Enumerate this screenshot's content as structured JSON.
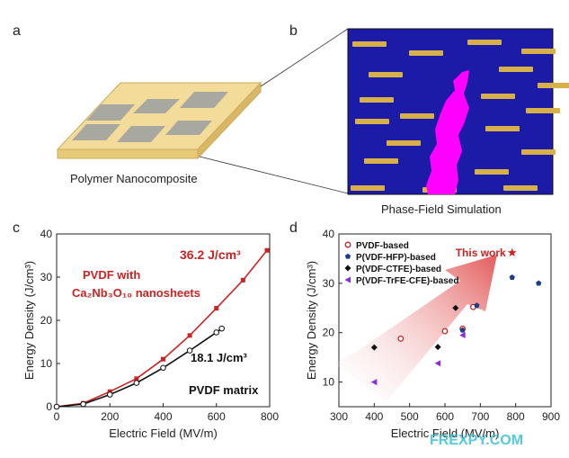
{
  "panels": {
    "a": {
      "label": "a",
      "caption": "Polymer Nanocomposite"
    },
    "b": {
      "label": "b",
      "caption": "Phase-Field Simulation"
    },
    "c": {
      "label": "c"
    },
    "d": {
      "label": "d"
    }
  },
  "colors": {
    "red": "#cc2222",
    "black": "#111111",
    "blue": "#1f3c88",
    "purple": "#8a2be2",
    "sim_bg": "#1b1ba8",
    "sim_stripe": "#d8b04a",
    "sim_magenta": "#ff00ff"
  },
  "chart_data": [
    {
      "type": "line",
      "xlabel": "Electric Field (MV/m)",
      "ylabel": "Energy Density (J/cm³)",
      "xlim": [
        0,
        800
      ],
      "ylim": [
        0,
        40
      ],
      "xticks": [
        0,
        200,
        400,
        600,
        800
      ],
      "yticks": [
        0,
        10,
        20,
        30,
        40
      ],
      "series": [
        {
          "x": [
            0,
            100,
            200,
            300,
            400,
            500,
            600,
            700,
            790
          ],
          "y": [
            0,
            0.8,
            3.5,
            6.5,
            11,
            16.5,
            22.8,
            29.3,
            36.2
          ]
        },
        {
          "x": [
            0,
            100,
            200,
            300,
            400,
            500,
            600,
            620
          ],
          "y": [
            0,
            0.6,
            2.8,
            5.5,
            9,
            13,
            17.2,
            18.1
          ]
        }
      ],
      "annotations": [
        {
          "text": "36.2 J/cm³",
          "color": "red"
        },
        {
          "text": "PVDF with",
          "color": "red"
        },
        {
          "text": "Ca₂Nb₃O₁₀ nanosheets",
          "color": "red"
        },
        {
          "text": "18.1 J/cm³",
          "color": "black"
        },
        {
          "text": "PVDF matrix",
          "color": "black"
        }
      ]
    },
    {
      "type": "scatter",
      "xlabel": "Electric Field (MV/m)",
      "ylabel": "Energy Density (J/cm³)",
      "xlim": [
        300,
        900
      ],
      "ylim": [
        5,
        40
      ],
      "xticks": [
        300,
        400,
        500,
        600,
        700,
        800,
        900
      ],
      "yticks": [
        10,
        20,
        30,
        40
      ],
      "series": [
        {
          "name": "PVDF-based",
          "marker": "circle-open",
          "color": "red",
          "points": [
            [
              475,
              18.8
            ],
            [
              600,
              20.3
            ],
            [
              650,
              20.8
            ],
            [
              680,
              25.2
            ]
          ]
        },
        {
          "name": "P(VDF-HFP)-based",
          "marker": "pentagon",
          "color": "blue",
          "points": [
            [
              650,
              20.5
            ],
            [
              690,
              25.5
            ],
            [
              790,
              31.2
            ],
            [
              865,
              30.0
            ]
          ]
        },
        {
          "name": "P(VDF-CTFE)-based",
          "marker": "diamond",
          "color": "black",
          "points": [
            [
              400,
              17.0
            ],
            [
              580,
              17.1
            ],
            [
              630,
              25.0
            ]
          ]
        },
        {
          "name": "P(VDF-TrFE-CFE)-based",
          "marker": "triangle-left",
          "color": "purple",
          "points": [
            [
              400,
              10.0
            ],
            [
              580,
              13.8
            ],
            [
              650,
              19.5
            ]
          ]
        }
      ],
      "highlight": {
        "text": "This work",
        "x": 790,
        "y": 36.2
      }
    }
  ],
  "watermark": "FREXPY.COM"
}
